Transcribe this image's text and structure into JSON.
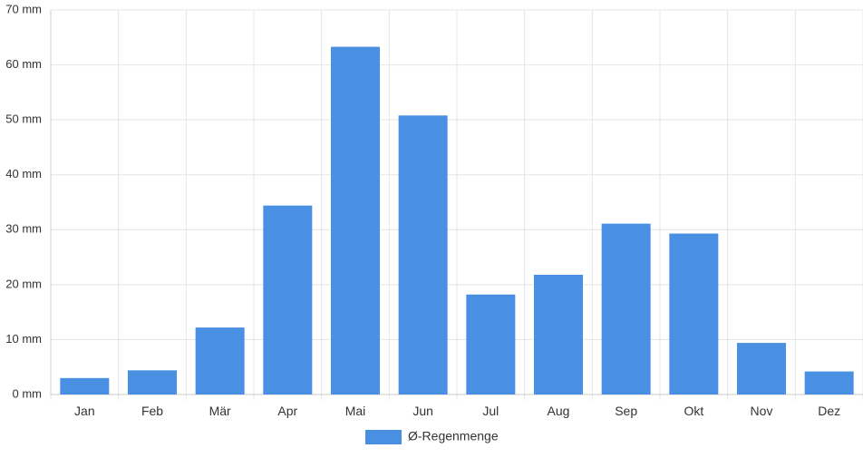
{
  "chart_data": {
    "type": "bar",
    "categories": [
      "Jan",
      "Feb",
      "Mär",
      "Apr",
      "Mai",
      "Jun",
      "Jul",
      "Aug",
      "Sep",
      "Okt",
      "Nov",
      "Dez"
    ],
    "series": [
      {
        "name": "Ø-Regenmenge",
        "values": [
          3.0,
          4.4,
          12.2,
          34.4,
          63.3,
          50.8,
          18.2,
          21.8,
          31.1,
          29.3,
          9.4,
          4.2
        ],
        "color": "#4a90e2"
      }
    ],
    "y_unit": "mm",
    "ylim": [
      0,
      70
    ],
    "y_ticks": [
      0,
      10,
      20,
      30,
      40,
      50,
      60,
      70
    ],
    "grid": true,
    "legend_position": "bottom",
    "title": "",
    "xlabel": "",
    "ylabel": ""
  }
}
